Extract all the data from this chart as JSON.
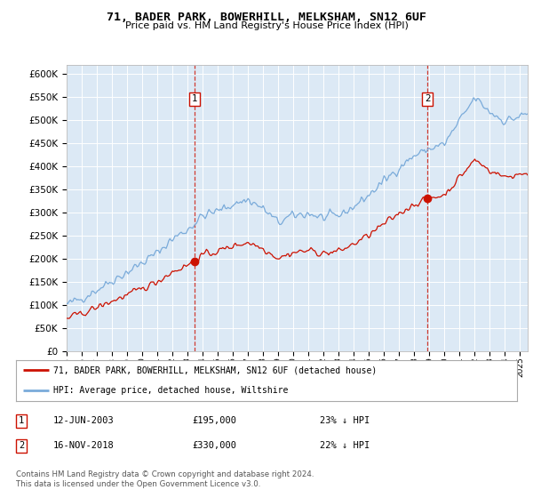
{
  "title": "71, BADER PARK, BOWERHILL, MELKSHAM, SN12 6UF",
  "subtitle": "Price paid vs. HM Land Registry's House Price Index (HPI)",
  "ylim": [
    0,
    620000
  ],
  "yticks": [
    0,
    50000,
    100000,
    150000,
    200000,
    250000,
    300000,
    350000,
    400000,
    450000,
    500000,
    550000,
    600000
  ],
  "plot_bg": "#dce9f5",
  "line_color_hpi": "#7aabda",
  "line_color_price": "#cc1100",
  "legend_label_price": "71, BADER PARK, BOWERHILL, MELKSHAM, SN12 6UF (detached house)",
  "legend_label_hpi": "HPI: Average price, detached house, Wiltshire",
  "purchase1_date": "12-JUN-2003",
  "purchase1_price": 195000,
  "purchase1_note": "23% ↓ HPI",
  "purchase1_x": 2003.45,
  "purchase2_date": "16-NOV-2018",
  "purchase2_price": 330000,
  "purchase2_note": "22% ↓ HPI",
  "purchase2_x": 2018.88,
  "footer": "Contains HM Land Registry data © Crown copyright and database right 2024.\nThis data is licensed under the Open Government Licence v3.0.",
  "xmin": 1995,
  "xmax": 2025.5
}
